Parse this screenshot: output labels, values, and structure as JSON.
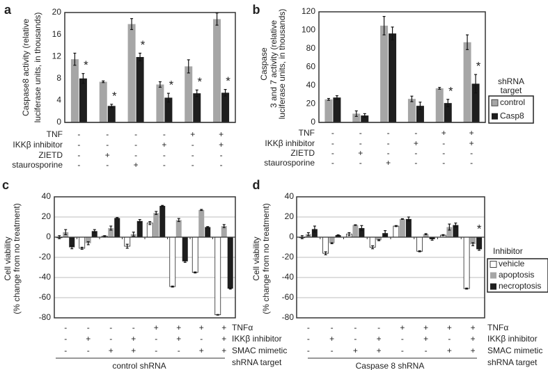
{
  "colors": {
    "control": "#a6a6a6",
    "casp8": "#1e1e1e",
    "vehicle": "#ffffff",
    "apoptosis": "#a6a6a6",
    "necroptosis": "#1e1e1e",
    "grid": "#bdbdbd"
  },
  "chart_data": [
    {
      "panel": "a",
      "type": "bar",
      "ylabel": [
        "Caspase8 activity (relative",
        "luciferase units, in thousands)"
      ],
      "ylim": [
        0,
        20
      ],
      "yticks": [
        0,
        4,
        8,
        12,
        16,
        20
      ],
      "series": [
        {
          "name": "control",
          "values": [
            11.5,
            7.4,
            17.9,
            6.9,
            10.2,
            18.8
          ],
          "errors": [
            1.1,
            0.15,
            1.0,
            0.5,
            1.2,
            1.1
          ]
        },
        {
          "name": "Casp8",
          "values": [
            8.0,
            3.0,
            11.9,
            4.5,
            5.3,
            5.4
          ],
          "errors": [
            0.9,
            0.3,
            0.7,
            0.8,
            0.6,
            0.6
          ]
        }
      ],
      "asterisk": "*",
      "asterisk_groups": [
        0,
        1,
        2,
        3,
        4,
        5
      ],
      "conditions": [
        {
          "label": "TNF",
          "values": [
            "-",
            "-",
            "-",
            "-",
            "+",
            "+"
          ]
        },
        {
          "label": "IKKβ inhibitor",
          "values": [
            "-",
            "-",
            "-",
            "+",
            "-",
            "+"
          ]
        },
        {
          "label": "ZIETD",
          "values": [
            "-",
            "+",
            "-",
            "-",
            "-",
            "-"
          ]
        },
        {
          "label": "staurosporine",
          "values": [
            "-",
            "-",
            "+",
            "-",
            "-",
            "-"
          ]
        }
      ]
    },
    {
      "panel": "b",
      "type": "bar",
      "ylabel": [
        "Caspase",
        "3 and 7 activity (relative",
        "luciferase units, in thousands)"
      ],
      "ylim": [
        0,
        120
      ],
      "yticks": [
        0,
        20,
        40,
        60,
        80,
        100,
        120
      ],
      "series": [
        {
          "name": "control",
          "values": [
            25,
            9.5,
            105,
            25.5,
            37,
            87
          ],
          "errors": [
            1,
            3,
            10,
            3,
            1,
            8
          ]
        },
        {
          "name": "Casp8",
          "values": [
            27,
            7.5,
            96.5,
            18,
            21,
            42
          ],
          "errors": [
            2,
            2,
            7,
            4,
            4,
            10
          ]
        }
      ],
      "asterisk": "*",
      "asterisk_groups": [
        4,
        5
      ],
      "legend": {
        "title": [
          "shRNA",
          "target"
        ],
        "placement": "right",
        "entries": [
          "control",
          "Casp8"
        ]
      },
      "conditions": [
        {
          "label": "TNF",
          "values": [
            "-",
            "-",
            "-",
            "-",
            "+",
            "+"
          ]
        },
        {
          "label": "IKKβ inhibitor",
          "values": [
            "-",
            "-",
            "-",
            "+",
            "-",
            "+"
          ]
        },
        {
          "label": "ZIETD",
          "values": [
            "-",
            "+",
            "-",
            "-",
            "-",
            "-"
          ]
        },
        {
          "label": "staurosporine",
          "values": [
            "-",
            "-",
            "+",
            "-",
            "-",
            "-"
          ]
        }
      ]
    },
    {
      "panel": "c",
      "type": "bar",
      "ylabel": [
        "Cell viability",
        "(% change from no treatment)"
      ],
      "ylim": [
        -80,
        40
      ],
      "yticks": [
        -80,
        -60,
        -40,
        -20,
        0,
        20,
        40
      ],
      "grid": true,
      "series": [
        {
          "name": "vehicle",
          "values": [
            0,
            -11,
            1,
            -9,
            14,
            -49,
            -35,
            -77
          ],
          "errors": [
            1.5,
            1,
            0.5,
            2,
            1.5,
            0.5,
            0.5,
            0.3
          ]
        },
        {
          "name": "apoptosis",
          "values": [
            5,
            -6,
            9,
            3,
            24,
            17,
            27,
            11
          ],
          "errors": [
            2.5,
            1.5,
            2,
            2,
            1.5,
            1.5,
            0.5,
            1.5
          ]
        },
        {
          "name": "necroptosis",
          "values": [
            -10,
            6,
            19,
            16,
            31,
            -24,
            10,
            -51
          ],
          "errors": [
            1.5,
            1.5,
            0.5,
            1.5,
            0.5,
            1,
            0.5,
            0.5
          ]
        }
      ],
      "conditions": [
        {
          "label": "TNFα",
          "values": [
            "-",
            "-",
            "-",
            "-",
            "+",
            "+",
            "+",
            "+"
          ]
        },
        {
          "label": "IKKβ inhibitor",
          "values": [
            "-",
            "+",
            "-",
            "+",
            "-",
            "+",
            "-",
            "+"
          ]
        },
        {
          "label": "SMAC mimetic",
          "values": [
            "-",
            "-",
            "+",
            "+",
            "-",
            "-",
            "+",
            "+"
          ]
        }
      ],
      "group_label": "control shRNA",
      "group_row_label": "shRNA target"
    },
    {
      "panel": "d",
      "type": "bar",
      "ylabel": [
        "Cell viability",
        "(% change from no treatment)"
      ],
      "ylim": [
        -80,
        40
      ],
      "yticks": [
        -80,
        -60,
        -40,
        -20,
        0,
        20,
        40
      ],
      "grid": true,
      "series": [
        {
          "name": "vehicle",
          "values": [
            0,
            -16,
            3,
            -10,
            11,
            -14,
            2,
            -51
          ],
          "errors": [
            1.5,
            1.5,
            1.5,
            1.5,
            0.5,
            0.5,
            0.5,
            0.5
          ]
        },
        {
          "name": "apoptosis",
          "values": [
            3,
            -6,
            12,
            -3,
            18,
            3,
            10,
            -7
          ],
          "errors": [
            1.5,
            0.5,
            0.3,
            0.5,
            0.3,
            0.5,
            3,
            1.5
          ]
        },
        {
          "name": "necroptosis",
          "values": [
            8,
            2,
            9,
            4,
            18,
            -2,
            12,
            -12
          ],
          "errors": [
            3,
            0.3,
            2.5,
            2.5,
            2,
            1,
            2,
            1
          ]
        }
      ],
      "asterisk": "*",
      "asterisk_groups": [
        7
      ],
      "legend": {
        "title": [
          "Inhibitor"
        ],
        "placement": "right",
        "entries": [
          "vehicle",
          "apoptosis",
          "necroptosis"
        ]
      },
      "conditions": [
        {
          "label": "TNFα",
          "values": [
            "-",
            "-",
            "-",
            "-",
            "+",
            "+",
            "+",
            "+"
          ]
        },
        {
          "label": "IKKβ inhibitor",
          "values": [
            "-",
            "+",
            "-",
            "+",
            "-",
            "+",
            "-",
            "+"
          ]
        },
        {
          "label": "SMAC mimetic",
          "values": [
            "-",
            "-",
            "+",
            "+",
            "-",
            "-",
            "+",
            "+"
          ]
        }
      ],
      "group_label": "Caspase 8 shRNA",
      "group_row_label": "shRNA target"
    }
  ],
  "panel_letters": [
    "a",
    "b",
    "c",
    "d"
  ]
}
